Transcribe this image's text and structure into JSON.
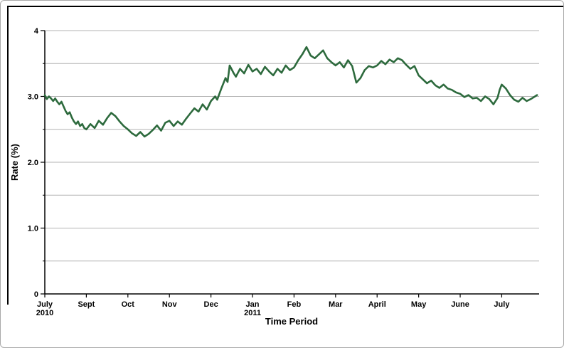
{
  "chart_data": {
    "type": "line",
    "title": "",
    "xlabel": "Time Period",
    "ylabel": "Rate (%)",
    "ylim": [
      0,
      4
    ],
    "grid": "horizontal gridlines every 0.5, light gray",
    "legend": "none",
    "y_grid_step": 0.5,
    "y_major_ticks": [
      {
        "value": 0,
        "label": "0"
      },
      {
        "value": 1,
        "label": "1.0"
      },
      {
        "value": 2,
        "label": "2.0"
      },
      {
        "value": 3,
        "label": "3.0"
      },
      {
        "value": 4,
        "label": "4"
      }
    ],
    "x_ticks": [
      {
        "label": "July",
        "sublabel": "2010"
      },
      {
        "label": "Sept"
      },
      {
        "label": "Oct"
      },
      {
        "label": "Nov"
      },
      {
        "label": "Dec"
      },
      {
        "label": "Jan",
        "sublabel": "2011"
      },
      {
        "label": "Feb"
      },
      {
        "label": "Mar"
      },
      {
        "label": "April"
      },
      {
        "label": "May"
      },
      {
        "label": "June"
      },
      {
        "label": "July"
      }
    ],
    "x_axis_note": "x values in points are axis tick units: 0 = July 2010 tick, 11 = July 2011 tick",
    "series": [
      {
        "name": "Rate (%)",
        "color": "#2d6a3d",
        "points": [
          [
            0,
            3.02
          ],
          [
            0.05,
            2.96
          ],
          [
            0.1,
            3.0
          ],
          [
            0.15,
            2.97
          ],
          [
            0.2,
            2.93
          ],
          [
            0.25,
            2.97
          ],
          [
            0.3,
            2.92
          ],
          [
            0.35,
            2.88
          ],
          [
            0.4,
            2.92
          ],
          [
            0.45,
            2.85
          ],
          [
            0.5,
            2.78
          ],
          [
            0.55,
            2.73
          ],
          [
            0.6,
            2.76
          ],
          [
            0.65,
            2.68
          ],
          [
            0.7,
            2.62
          ],
          [
            0.75,
            2.58
          ],
          [
            0.8,
            2.62
          ],
          [
            0.85,
            2.55
          ],
          [
            0.9,
            2.58
          ],
          [
            0.95,
            2.52
          ],
          [
            1,
            2.5
          ],
          [
            1.1,
            2.58
          ],
          [
            1.2,
            2.52
          ],
          [
            1.3,
            2.63
          ],
          [
            1.4,
            2.57
          ],
          [
            1.5,
            2.67
          ],
          [
            1.6,
            2.75
          ],
          [
            1.7,
            2.7
          ],
          [
            1.8,
            2.62
          ],
          [
            1.9,
            2.55
          ],
          [
            2,
            2.5
          ],
          [
            2.1,
            2.44
          ],
          [
            2.2,
            2.4
          ],
          [
            2.3,
            2.46
          ],
          [
            2.4,
            2.39
          ],
          [
            2.5,
            2.43
          ],
          [
            2.6,
            2.49
          ],
          [
            2.7,
            2.56
          ],
          [
            2.8,
            2.48
          ],
          [
            2.9,
            2.6
          ],
          [
            3,
            2.63
          ],
          [
            3.1,
            2.55
          ],
          [
            3.2,
            2.62
          ],
          [
            3.3,
            2.57
          ],
          [
            3.4,
            2.66
          ],
          [
            3.5,
            2.74
          ],
          [
            3.6,
            2.82
          ],
          [
            3.7,
            2.77
          ],
          [
            3.8,
            2.88
          ],
          [
            3.9,
            2.8
          ],
          [
            4,
            2.93
          ],
          [
            4.1,
            3.0
          ],
          [
            4.15,
            2.95
          ],
          [
            4.25,
            3.12
          ],
          [
            4.35,
            3.28
          ],
          [
            4.4,
            3.22
          ],
          [
            4.45,
            3.47
          ],
          [
            4.55,
            3.35
          ],
          [
            4.6,
            3.3
          ],
          [
            4.7,
            3.42
          ],
          [
            4.8,
            3.35
          ],
          [
            4.9,
            3.48
          ],
          [
            5,
            3.38
          ],
          [
            5.1,
            3.42
          ],
          [
            5.2,
            3.34
          ],
          [
            5.3,
            3.45
          ],
          [
            5.4,
            3.38
          ],
          [
            5.5,
            3.32
          ],
          [
            5.6,
            3.42
          ],
          [
            5.7,
            3.36
          ],
          [
            5.8,
            3.47
          ],
          [
            5.9,
            3.4
          ],
          [
            6,
            3.44
          ],
          [
            6.1,
            3.55
          ],
          [
            6.2,
            3.64
          ],
          [
            6.3,
            3.75
          ],
          [
            6.4,
            3.62
          ],
          [
            6.5,
            3.58
          ],
          [
            6.6,
            3.64
          ],
          [
            6.7,
            3.7
          ],
          [
            6.8,
            3.58
          ],
          [
            6.9,
            3.52
          ],
          [
            7,
            3.47
          ],
          [
            7.1,
            3.52
          ],
          [
            7.2,
            3.44
          ],
          [
            7.3,
            3.55
          ],
          [
            7.4,
            3.46
          ],
          [
            7.5,
            3.21
          ],
          [
            7.6,
            3.28
          ],
          [
            7.7,
            3.4
          ],
          [
            7.8,
            3.46
          ],
          [
            7.9,
            3.44
          ],
          [
            8,
            3.47
          ],
          [
            8.1,
            3.54
          ],
          [
            8.2,
            3.49
          ],
          [
            8.3,
            3.56
          ],
          [
            8.4,
            3.52
          ],
          [
            8.5,
            3.58
          ],
          [
            8.6,
            3.55
          ],
          [
            8.7,
            3.48
          ],
          [
            8.8,
            3.42
          ],
          [
            8.9,
            3.46
          ],
          [
            9,
            3.32
          ],
          [
            9.1,
            3.26
          ],
          [
            9.2,
            3.2
          ],
          [
            9.3,
            3.24
          ],
          [
            9.4,
            3.17
          ],
          [
            9.5,
            3.13
          ],
          [
            9.6,
            3.18
          ],
          [
            9.7,
            3.12
          ],
          [
            9.8,
            3.1
          ],
          [
            9.9,
            3.06
          ],
          [
            10,
            3.04
          ],
          [
            10.1,
            2.99
          ],
          [
            10.2,
            3.02
          ],
          [
            10.3,
            2.97
          ],
          [
            10.4,
            2.98
          ],
          [
            10.5,
            2.93
          ],
          [
            10.6,
            3.0
          ],
          [
            10.7,
            2.96
          ],
          [
            10.8,
            2.88
          ],
          [
            10.9,
            2.98
          ],
          [
            10.95,
            3.1
          ],
          [
            11,
            3.18
          ],
          [
            11.1,
            3.12
          ],
          [
            11.2,
            3.02
          ],
          [
            11.3,
            2.95
          ],
          [
            11.4,
            2.92
          ],
          [
            11.5,
            2.98
          ],
          [
            11.6,
            2.93
          ],
          [
            11.7,
            2.96
          ],
          [
            11.8,
            3.0
          ],
          [
            11.85,
            3.02
          ]
        ]
      }
    ]
  },
  "style": {
    "line_color": "#2d6a3d",
    "grid_color": "#b3b3b3",
    "axis_color": "#000000",
    "background": "#ffffff",
    "frame_border": "#000000",
    "outer_border": "#a8a8a8"
  }
}
